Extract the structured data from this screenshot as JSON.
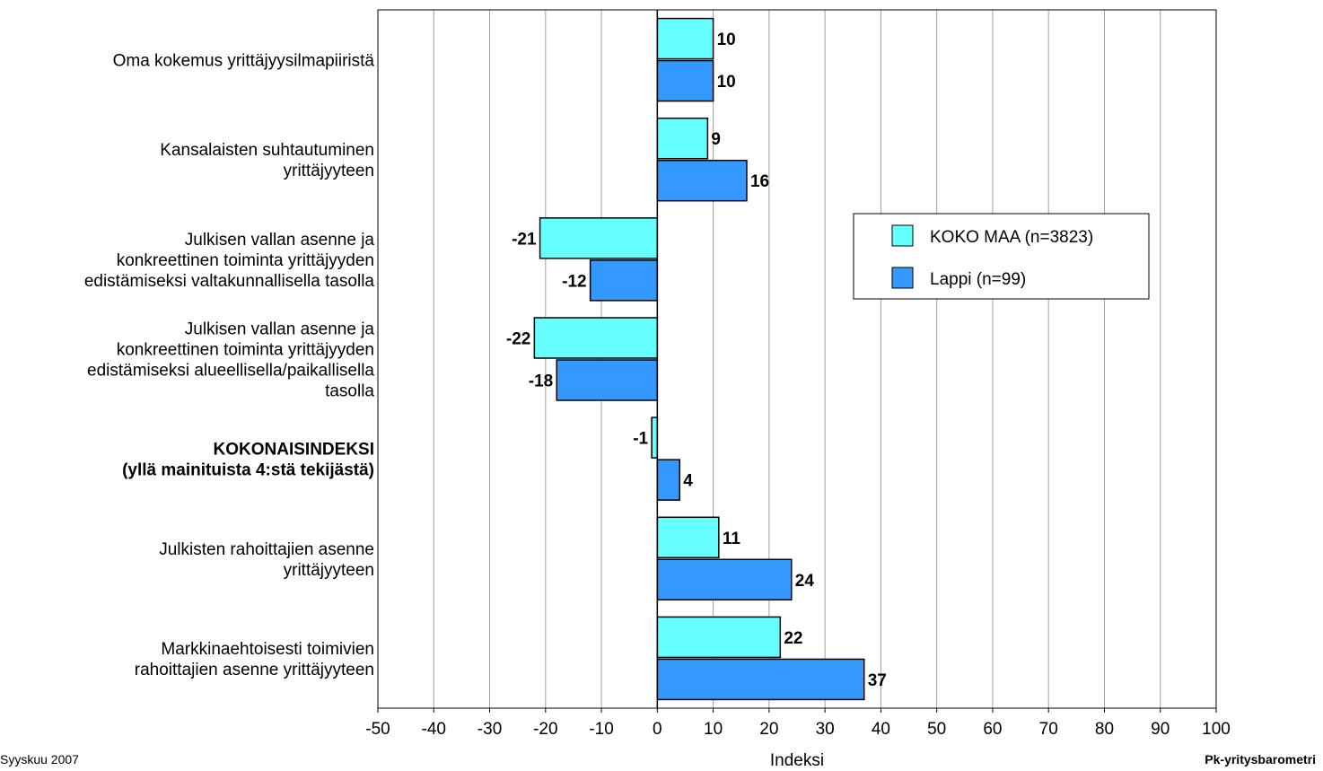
{
  "chart_data": {
    "type": "bar",
    "orientation": "horizontal",
    "categories": [
      [
        "Oma kokemus yrittäjyysilmapiiristä"
      ],
      [
        "Kansalaisten suhtautuminen",
        "yrittäjyyteen"
      ],
      [
        "Julkisen vallan asenne ja",
        "konkreettinen toiminta yrittäjyyden",
        "edistämiseksi valtakunnallisella tasolla"
      ],
      [
        "Julkisen vallan asenne ja",
        "konkreettinen toiminta yrittäjyyden",
        "edistämiseksi alueellisella/paikallisella",
        "tasolla"
      ],
      [
        "KOKONAISINDEKSI",
        "(yllä mainituista 4:stä tekijästä)"
      ],
      [
        "Julkisten rahoittajien asenne",
        "yrittäjyyteen"
      ],
      [
        "Markkinaehtoisesti toimivien",
        "rahoittajien asenne yrittäjyyteen"
      ]
    ],
    "bold_categories": [
      4
    ],
    "series": [
      {
        "name": "KOKO MAA (n=3823)",
        "color": "#66ffff",
        "values": [
          10,
          9,
          -21,
          -22,
          -1,
          11,
          22
        ]
      },
      {
        "name": "Lappi (n=99)",
        "color": "#3399ff",
        "values": [
          10,
          16,
          -12,
          -18,
          4,
          24,
          37
        ]
      }
    ],
    "xlabel": "Indeksi",
    "xlim": [
      -50,
      100
    ],
    "xticks": [
      -50,
      -40,
      -30,
      -20,
      -10,
      0,
      10,
      20,
      30,
      40,
      50,
      60,
      70,
      80,
      90,
      100
    ],
    "grid": true,
    "legend": "right"
  },
  "footer": {
    "left": "Syyskuu 2007",
    "right": "Pk-yritysbarometri"
  }
}
